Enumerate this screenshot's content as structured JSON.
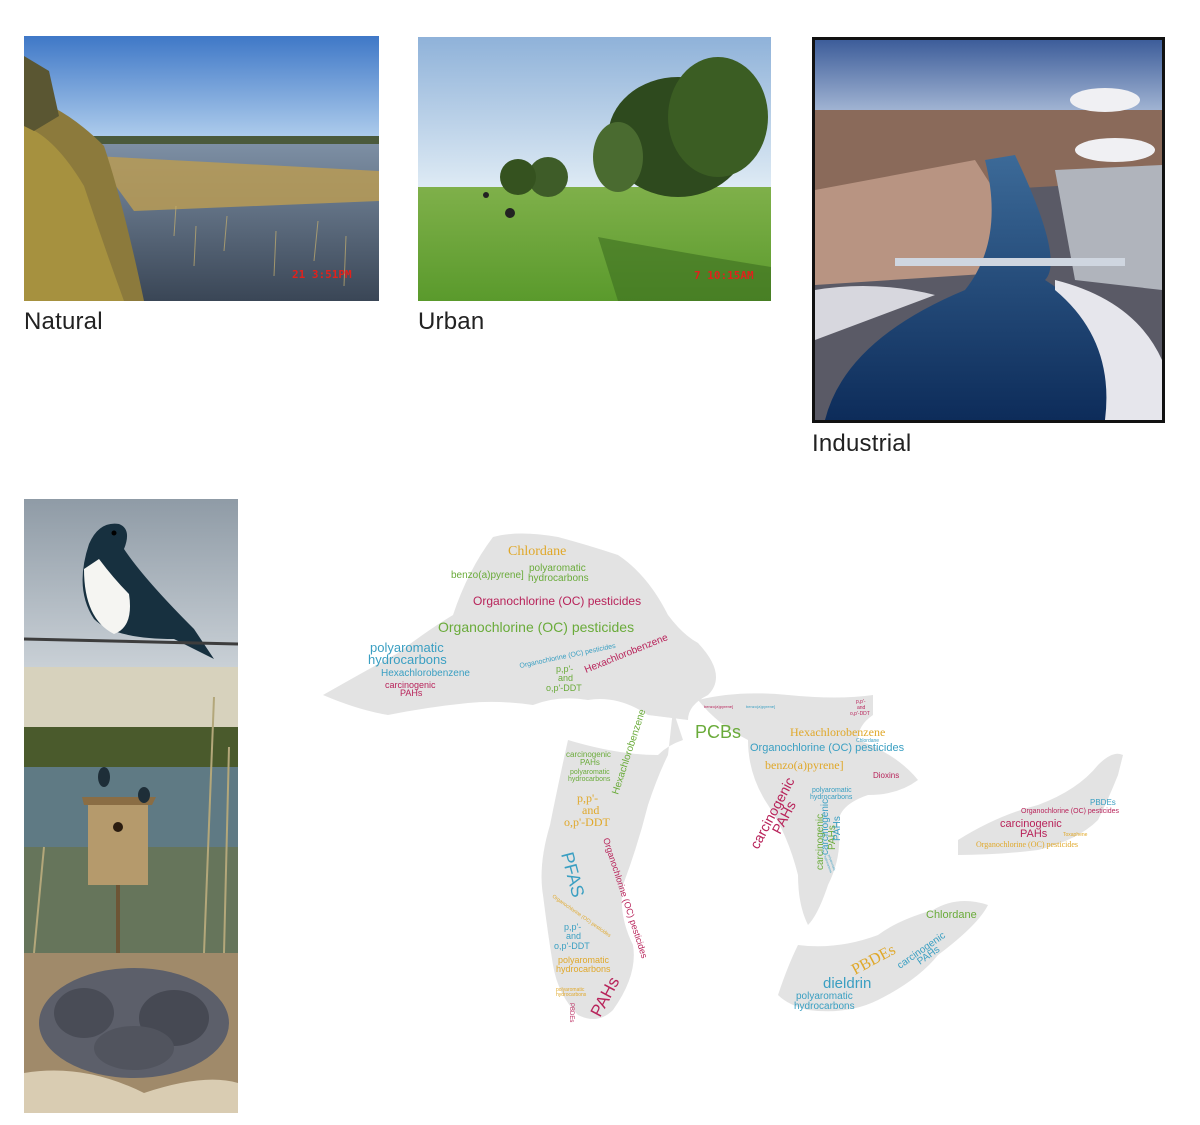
{
  "landscapes": [
    {
      "caption": "Natural",
      "timestamp": "21  3:51PM"
    },
    {
      "caption": "Urban",
      "timestamp": "7  10:15AM"
    },
    {
      "caption": "Industrial"
    }
  ],
  "colors": {
    "magenta": "#b8235a",
    "green": "#6aab3a",
    "teal": "#3a9fc2",
    "gold": "#e0a82a",
    "lake_fill": "#e3e3e3"
  },
  "word_cloud": {
    "superior": [
      {
        "text": "Chlordane",
        "color": "gold"
      },
      {
        "text": "benzo(a)pyrene]",
        "color": "green"
      },
      {
        "text": "polyaromatic hydrocarbons",
        "color": "green"
      },
      {
        "text": "Organochlorine (OC) pesticides",
        "color": "magenta"
      },
      {
        "text": "Organochlorine (OC) pesticides",
        "color": "green"
      },
      {
        "text": "polyaromatic hydrocarbons",
        "color": "teal"
      },
      {
        "text": "Hexachlorobenzene",
        "color": "teal"
      },
      {
        "text": "carcinogenic PAHs",
        "color": "magenta"
      },
      {
        "text": "Organochlorine (OC) pesticides",
        "color": "teal"
      },
      {
        "text": "Hexachlorobenzene",
        "color": "magenta"
      },
      {
        "text": "p,p'- and o,p'-DDT",
        "color": "green"
      }
    ],
    "michigan": [
      {
        "text": "benzo(a)pyrene]",
        "color": "magenta"
      },
      {
        "text": "benzo(a)pyrene]",
        "color": "teal"
      },
      {
        "text": "PCBs",
        "color": "green"
      },
      {
        "text": "carcinogenic PAHs",
        "color": "green"
      },
      {
        "text": "polyaromatic hydrocarbons",
        "color": "green"
      },
      {
        "text": "Hexachlorobenzene",
        "color": "green"
      },
      {
        "text": "p,p'- and o,p'-DDT",
        "color": "gold"
      },
      {
        "text": "PFAS",
        "color": "teal"
      },
      {
        "text": "Organochlorine (OC) pesticides",
        "color": "magenta"
      },
      {
        "text": "Organochlorine (OC) pesticides",
        "color": "gold"
      },
      {
        "text": "p,p'- and o,p'-DDT",
        "color": "teal"
      },
      {
        "text": "polyaromatic hydrocarbons",
        "color": "gold"
      },
      {
        "text": "polyaromatic hydrocarbons",
        "color": "gold"
      },
      {
        "text": "PAHs",
        "color": "magenta"
      },
      {
        "text": "PBDEs",
        "color": "magenta"
      }
    ],
    "huron": [
      {
        "text": "p,p'- and o,p'-DDT",
        "color": "magenta"
      },
      {
        "text": "Hexachlorobenzene",
        "color": "gold"
      },
      {
        "text": "Chlordane",
        "color": "teal"
      },
      {
        "text": "Organochlorine (OC) pesticides",
        "color": "teal"
      },
      {
        "text": "benzo(a)pyrene]",
        "color": "gold"
      },
      {
        "text": "Dioxins",
        "color": "magenta"
      },
      {
        "text": "carcinogenic PAHs",
        "color": "magenta"
      },
      {
        "text": "polyaromatic hydrocarbons",
        "color": "teal"
      },
      {
        "text": "carcinogenic PAHs",
        "color": "teal"
      },
      {
        "text": "carcinogenic PAHs",
        "color": "green"
      },
      {
        "text": "polyaromatic hydrocarbons",
        "color": "teal"
      }
    ],
    "erie": [
      {
        "text": "Chlordane",
        "color": "green"
      },
      {
        "text": "PBDEs",
        "color": "gold"
      },
      {
        "text": "carcinogenic PAHs",
        "color": "teal"
      },
      {
        "text": "dieldrin",
        "color": "teal"
      },
      {
        "text": "polyaromatic hydrocarbons",
        "color": "teal"
      }
    ],
    "ontario": [
      {
        "text": "PBDEs",
        "color": "teal"
      },
      {
        "text": "Organochlorine (OC) pesticides",
        "color": "magenta"
      },
      {
        "text": "carcinogenic PAHs",
        "color": "magenta"
      },
      {
        "text": "Toxaphene",
        "color": "gold"
      },
      {
        "text": "Organochlorine (OC) pesticides",
        "color": "gold"
      }
    ]
  }
}
